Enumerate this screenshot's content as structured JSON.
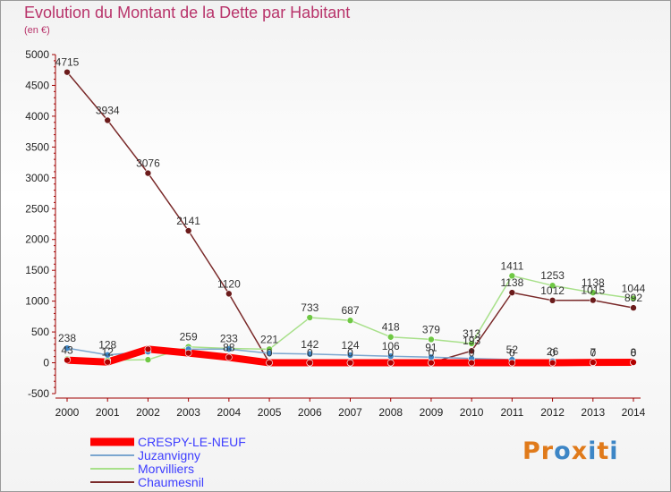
{
  "title": "Evolution du Montant de la Dette par Habitant",
  "subtitle": "(en €)",
  "logo": {
    "letters": [
      "P",
      "r",
      "o",
      "x",
      "i",
      "t",
      "i"
    ],
    "colors": [
      "#e07a1a",
      "#e07a1a",
      "#3d86c6",
      "#e07a1a",
      "#3d86c6",
      "#e07a1a",
      "#3d86c6"
    ]
  },
  "chart_data": {
    "type": "line",
    "title": "Evolution du Montant de la Dette par Habitant",
    "ylabel": "(en €)",
    "x": [
      "2000",
      "2001",
      "2002",
      "2003",
      "2004",
      "2005",
      "2006",
      "2007",
      "2008",
      "2009",
      "2010",
      "2011",
      "2012",
      "2013",
      "2014"
    ],
    "ylim": [
      -500,
      5000
    ],
    "yticks": [
      -500,
      0,
      500,
      1000,
      1500,
      2000,
      2500,
      3000,
      3500,
      4000,
      4500,
      5000
    ],
    "grid": false,
    "legend_position": "bottom-left",
    "series": [
      {
        "name": "CRESPY-LE-NEUF",
        "color": "#ff0000",
        "marker": "#b00000",
        "values": [
          43,
          12,
          221,
          158,
          88,
          0,
          0,
          0,
          0,
          0,
          0,
          0,
          0,
          7,
          8
        ],
        "labels": [
          "43",
          "12",
          "",
          "",
          "88",
          "0",
          "0",
          "0",
          "0",
          "0",
          "0",
          "0",
          "0",
          "7",
          "8"
        ]
      },
      {
        "name": "Juzanvigny",
        "color": "#7ba6cf",
        "marker": "#3d86c6",
        "values": [
          238,
          128,
          180,
          220,
          222,
          153,
          142,
          124,
          106,
          91,
          69,
          52,
          26,
          0,
          0
        ],
        "labels": [
          "238",
          "128",
          "",
          "",
          "",
          "",
          "142",
          "124",
          "106",
          "91",
          "",
          "52",
          "26",
          "0",
          "0"
        ]
      },
      {
        "name": "Morvilliers",
        "color": "#a8e08a",
        "marker": "#6fc844",
        "values": [
          60,
          40,
          50,
          259,
          233,
          221,
          733,
          687,
          418,
          379,
          313,
          1411,
          1253,
          1138,
          1044
        ],
        "labels": [
          "",
          "",
          "",
          "259",
          "233",
          "221",
          "733",
          "687",
          "418",
          "379",
          "313",
          "1411",
          "1253",
          "1138",
          "1044"
        ]
      },
      {
        "name": "Chaumesnil",
        "color": "#7a2a2a",
        "marker": "#6b1b1b",
        "values": [
          4715,
          3934,
          3076,
          2141,
          1120,
          0,
          0,
          0,
          0,
          0,
          193,
          1138,
          1012,
          1015,
          892
        ],
        "labels": [
          "4715",
          "3934",
          "3076",
          "2141",
          "1120",
          "",
          "",
          "",
          "",
          "",
          "193",
          "1138",
          "1012",
          "1015",
          "892"
        ]
      }
    ]
  }
}
